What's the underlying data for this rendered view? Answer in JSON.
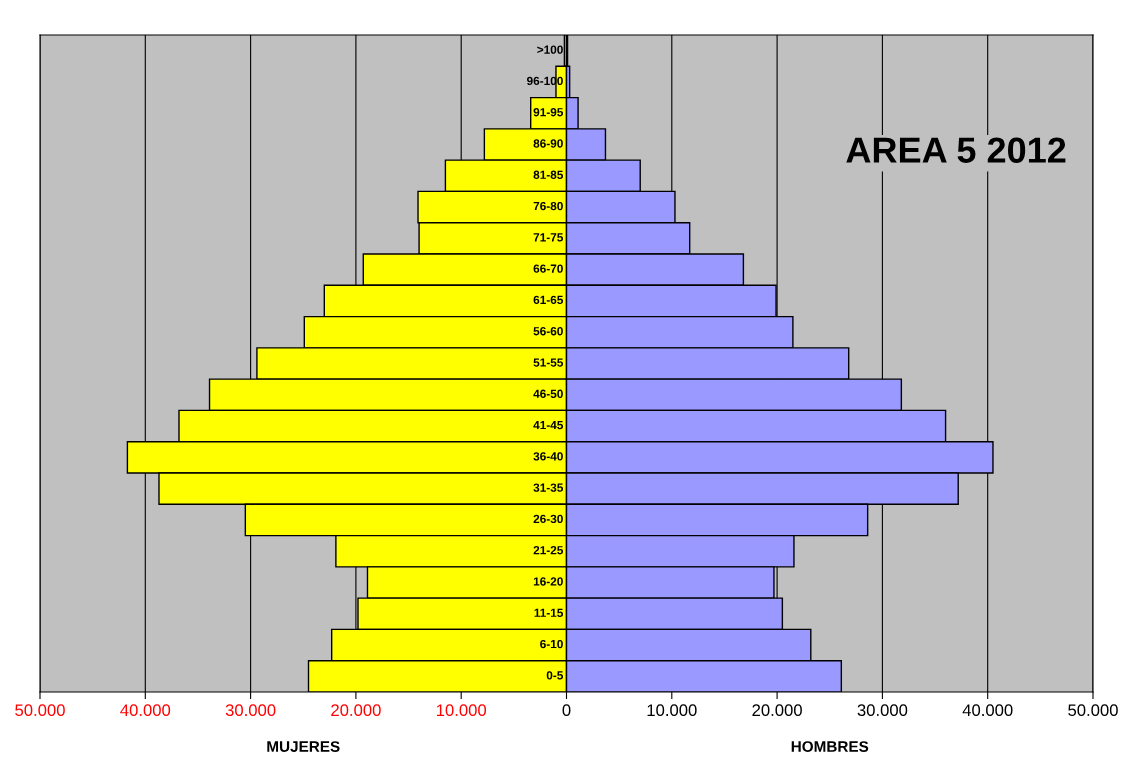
{
  "chart_data": {
    "type": "bar",
    "orientation": "horizontal",
    "stacked": true,
    "title": "AREA 5 2012",
    "categories": [
      ">100",
      "96-100",
      "91-95",
      "86-90",
      "81-85",
      "76-80",
      "71-75",
      "66-70",
      "61-65",
      "56-60",
      "51-55",
      "46-50",
      "41-45",
      "36-40",
      "31-35",
      "26-30",
      "21-25",
      "16-20",
      "11-15",
      "6-10",
      "0-5"
    ],
    "series": [
      {
        "color": "#ffff00",
        "values": [
          -200,
          -1000,
          -3400,
          -7800,
          -11500,
          -14100,
          -14000,
          -19300,
          -23000,
          -24900,
          -29400,
          -33900,
          -36800,
          -41700,
          -38700,
          -30500,
          -21900,
          -18900,
          -19800,
          -22300,
          -24500
        ]
      },
      {
        "color": "#9999ff",
        "values": [
          100,
          300,
          1100,
          3700,
          7000,
          10300,
          11700,
          16800,
          19900,
          21500,
          26800,
          31800,
          36000,
          40500,
          37200,
          28600,
          21600,
          19700,
          20500,
          23200,
          26100
        ]
      }
    ],
    "annotations": [
      "MUJERES",
      "HOMBRES"
    ],
    "xlim": [
      -50000,
      50000
    ],
    "xticks": [
      {
        "value": -50000,
        "label": "50.000"
      },
      {
        "value": -40000,
        "label": "40.000"
      },
      {
        "value": -30000,
        "label": "30.000"
      },
      {
        "value": -20000,
        "label": "20.000"
      },
      {
        "value": -10000,
        "label": "10.000"
      },
      0,
      {
        "value": 10000,
        "label": "10.000"
      },
      {
        "value": 20000,
        "label": "20.000"
      },
      {
        "value": 30000,
        "label": "30.000"
      },
      {
        "value": 40000,
        "label": "40.000"
      },
      {
        "value": 50000,
        "label": "50.000"
      }
    ],
    "grid": "x"
  }
}
